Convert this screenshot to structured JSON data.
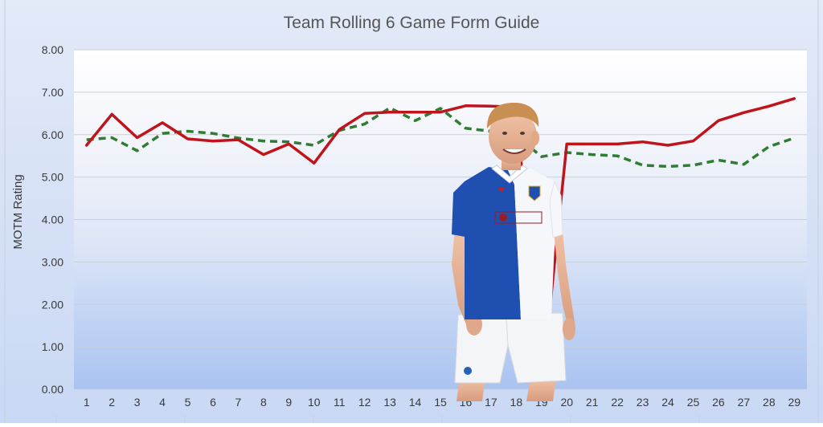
{
  "chart_data": {
    "type": "line",
    "title": "Team Rolling 6 Game Form Guide",
    "xlabel": "",
    "ylabel": "MOTM Rating",
    "ylim": [
      0,
      8
    ],
    "yticks": [
      "0.00",
      "1.00",
      "2.00",
      "3.00",
      "4.00",
      "5.00",
      "6.00",
      "7.00",
      "8.00"
    ],
    "categories": [
      "1",
      "2",
      "3",
      "4",
      "5",
      "6",
      "7",
      "8",
      "9",
      "10",
      "11",
      "12",
      "13",
      "14",
      "15",
      "16",
      "17",
      "18",
      "19",
      "20",
      "21",
      "22",
      "23",
      "24",
      "25",
      "26",
      "27",
      "28",
      "29"
    ],
    "grid": true,
    "series": [
      {
        "style": "solid",
        "color": "#c0141c",
        "values": [
          5.75,
          6.48,
          5.93,
          6.28,
          5.9,
          5.85,
          5.88,
          5.53,
          5.78,
          5.33,
          6.12,
          6.5,
          6.53,
          6.53,
          6.53,
          6.68,
          6.67,
          6.65,
          0.0,
          5.78,
          5.78,
          5.78,
          5.83,
          5.75,
          5.85,
          6.33,
          6.52,
          6.67,
          6.85
        ]
      },
      {
        "style": "dashed",
        "color": "#2f7d32",
        "values": [
          5.88,
          5.93,
          5.62,
          6.03,
          6.08,
          6.03,
          5.92,
          5.85,
          5.83,
          5.75,
          6.1,
          6.25,
          6.63,
          6.33,
          6.62,
          6.15,
          6.08,
          5.98,
          5.48,
          5.58,
          5.53,
          5.5,
          5.28,
          5.25,
          5.28,
          5.4,
          5.3,
          5.72,
          5.92
        ]
      }
    ]
  },
  "colors": {
    "outer_bg": "#dbe4f7",
    "plot_top": "#ffffff",
    "plot_bottom": "#a9c3f1",
    "title_text": "#555555",
    "axis_text": "#3a3a3a"
  },
  "overlay_photo": "footballer-blue-white-halved-shirt"
}
